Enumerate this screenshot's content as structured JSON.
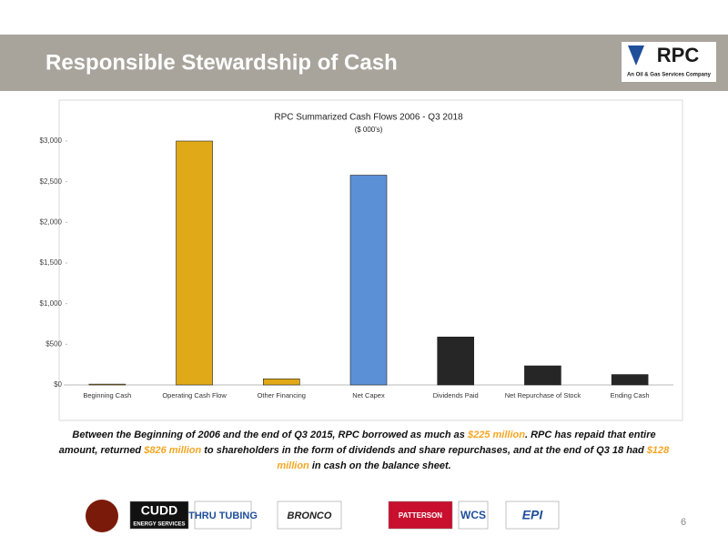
{
  "header": {
    "title": "Responsible Stewardship of Cash",
    "logo": {
      "name": "RPC",
      "tagline": "An Oil & Gas Services Company"
    }
  },
  "chart_data": {
    "type": "bar",
    "title": "RPC Summarized Cash Flows 2006 - Q3 2018",
    "subtitle": "($ 000's)",
    "categories": [
      "Beginning Cash",
      "Operating Cash Flow",
      "Other Financing",
      "Net Capex",
      "Dividends Paid",
      "Net Repurchase of Stock",
      "Ending Cash"
    ],
    "values": [
      10,
      3000,
      75,
      2580,
      590,
      235,
      128
    ],
    "colors": [
      "#e0a918",
      "#e0a918",
      "#e0a918",
      "#5b8fd6",
      "#262626",
      "#262626",
      "#262626"
    ],
    "ylim": [
      0,
      3000
    ],
    "yticks": [
      {
        "value": 0,
        "label": "$0"
      },
      {
        "value": 500,
        "label": "$500"
      },
      {
        "value": 1000,
        "label": "$1,000"
      },
      {
        "value": 1500,
        "label": "$1,500"
      },
      {
        "value": 2000,
        "label": "$2,000"
      },
      {
        "value": 2500,
        "label": "$2,500"
      },
      {
        "value": 3000,
        "label": "$3,000"
      }
    ],
    "grid": false
  },
  "caption": [
    {
      "text": "Between the Beginning of 2006 and the end of Q3 2015, RPC borrowed as much as ",
      "highlight": false
    },
    {
      "text": "$225 million",
      "highlight": true
    },
    {
      "text": ".  RPC has repaid that entire amount, returned ",
      "highlight": false
    },
    {
      "text": "$826 million",
      "highlight": true
    },
    {
      "text": " to shareholders in the form of dividends and share repurchases, and at the end of Q3 18 had ",
      "highlight": false
    },
    {
      "text": "$128 million",
      "highlight": true
    },
    {
      "text": " in cash on the balance sheet.",
      "highlight": false
    }
  ],
  "footer": {
    "logos": [
      "CUDD",
      "ENERGY SERVICES",
      "THRU TUBING",
      "BRONCO",
      "PATTERSON",
      "WCS",
      "EPI"
    ],
    "page": "6"
  }
}
